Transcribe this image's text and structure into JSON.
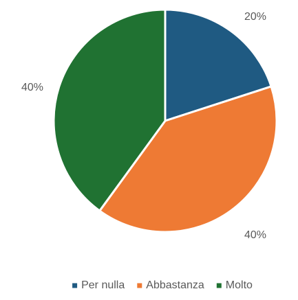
{
  "chart_data": {
    "type": "pie",
    "title": "",
    "slices": [
      {
        "label": "Per nulla",
        "value": 20,
        "display": "20%",
        "color": "#1f5a82"
      },
      {
        "label": "Abbastanza",
        "value": 40,
        "display": "40%",
        "color": "#ee7a34"
      },
      {
        "label": "Molto",
        "value": 40,
        "display": "40%",
        "color": "#207232"
      }
    ],
    "legend_position": "bottom",
    "separator_color": "#ffffff"
  }
}
